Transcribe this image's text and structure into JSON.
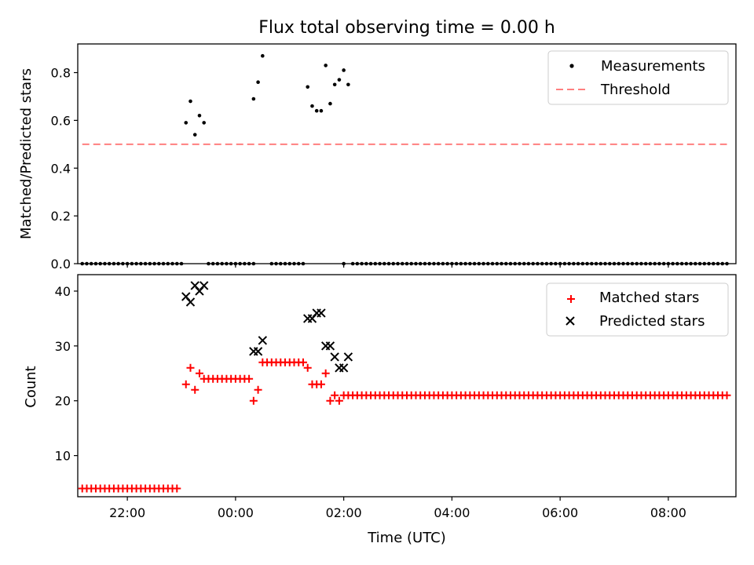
{
  "chart_data": [
    {
      "type": "scatter",
      "title": "Flux total observing time = 0.00 h",
      "xlabel": "",
      "ylabel": "Matched/Predicted stars",
      "xlim": [
        "21:05",
        "09:15"
      ],
      "ylim": [
        0,
        0.92
      ],
      "yticks": [
        0.0,
        0.2,
        0.4,
        0.6,
        0.8
      ],
      "ytick_labels": [
        "0.0",
        "0.2",
        "0.4",
        "0.6",
        "0.8"
      ],
      "grid": false,
      "legend": "top-right",
      "series": [
        {
          "name": "Measurements",
          "kind": "points",
          "color": "#000000",
          "zero_x": [
            "21:10",
            "21:15",
            "21:20",
            "21:25",
            "21:30",
            "21:35",
            "21:40",
            "21:45",
            "21:50",
            "21:55",
            "22:00",
            "22:05",
            "22:10",
            "22:15",
            "22:20",
            "22:25",
            "22:30",
            "22:35",
            "22:40",
            "22:45",
            "22:50",
            "22:55",
            "23:00",
            "23:30",
            "23:35",
            "23:40",
            "23:45",
            "23:50",
            "23:55",
            "00:00",
            "00:05",
            "00:10",
            "00:15",
            "00:20",
            "00:40",
            "00:45",
            "00:50",
            "00:55",
            "01:00",
            "01:05",
            "01:10",
            "01:15",
            "02:00",
            "02:10",
            "02:15",
            "02:20",
            "02:25",
            "02:30",
            "02:35",
            "02:40",
            "02:45",
            "02:50",
            "02:55",
            "03:00",
            "03:05",
            "03:10",
            "03:15",
            "03:20",
            "03:25",
            "03:30",
            "03:35",
            "03:40",
            "03:45",
            "03:50",
            "03:55",
            "04:00",
            "04:05",
            "04:10",
            "04:15",
            "04:20",
            "04:25",
            "04:30",
            "04:35",
            "04:40",
            "04:45",
            "04:50",
            "04:55",
            "05:00",
            "05:05",
            "05:10",
            "05:15",
            "05:20",
            "05:25",
            "05:30",
            "05:35",
            "05:40",
            "05:45",
            "05:50",
            "05:55",
            "06:00",
            "06:05",
            "06:10",
            "06:15",
            "06:20",
            "06:25",
            "06:30",
            "06:35",
            "06:40",
            "06:45",
            "06:50",
            "06:55",
            "07:00",
            "07:05",
            "07:10",
            "07:15",
            "07:20",
            "07:25",
            "07:30",
            "07:35",
            "07:40",
            "07:45",
            "07:50",
            "07:55",
            "08:00",
            "08:05",
            "08:10",
            "08:15",
            "08:20",
            "08:25",
            "08:30",
            "08:35",
            "08:40",
            "08:45",
            "08:50",
            "08:55",
            "09:00",
            "09:05"
          ],
          "points": [
            {
              "x": "23:05",
              "y": 0.59
            },
            {
              "x": "23:10",
              "y": 0.68
            },
            {
              "x": "23:15",
              "y": 0.54
            },
            {
              "x": "23:20",
              "y": 0.62
            },
            {
              "x": "23:25",
              "y": 0.59
            },
            {
              "x": "00:20",
              "y": 0.69
            },
            {
              "x": "00:25",
              "y": 0.76
            },
            {
              "x": "00:30",
              "y": 0.87
            },
            {
              "x": "01:20",
              "y": 0.74
            },
            {
              "x": "01:25",
              "y": 0.66
            },
            {
              "x": "01:30",
              "y": 0.64
            },
            {
              "x": "01:35",
              "y": 0.64
            },
            {
              "x": "01:40",
              "y": 0.83
            },
            {
              "x": "01:45",
              "y": 0.67
            },
            {
              "x": "01:50",
              "y": 0.75
            },
            {
              "x": "01:55",
              "y": 0.77
            },
            {
              "x": "02:00",
              "y": 0.81
            },
            {
              "x": "02:05",
              "y": 0.75
            }
          ]
        },
        {
          "name": "Threshold",
          "kind": "dashed-line",
          "color": "#ff7f7f",
          "x": [
            "21:10",
            "09:05"
          ],
          "y": [
            0.5,
            0.5
          ]
        }
      ]
    },
    {
      "type": "scatter",
      "title": "",
      "xlabel": "Time (UTC)",
      "ylabel": "Count",
      "xlim": [
        "21:05",
        "09:15"
      ],
      "ylim": [
        2.5,
        43
      ],
      "yticks": [
        10,
        20,
        30,
        40
      ],
      "ytick_labels": [
        "10",
        "20",
        "30",
        "40"
      ],
      "xticks": [
        "22:00",
        "00:00",
        "02:00",
        "04:00",
        "06:00",
        "08:00"
      ],
      "xtick_labels": [
        "22:00",
        "00:00",
        "02:00",
        "04:00",
        "06:00",
        "08:00"
      ],
      "grid": false,
      "legend": "top-right",
      "series": [
        {
          "name": "Matched stars",
          "marker": "plus",
          "color": "#ff0000",
          "runs": [
            {
              "from": "21:10",
              "to": "22:55",
              "y": 4
            },
            {
              "from": "23:30",
              "to": "00:15",
              "y": 24
            },
            {
              "from": "00:30",
              "to": "01:15",
              "y": 27
            },
            {
              "from": "02:00",
              "to": "09:05",
              "y": 21
            }
          ],
          "points": [
            {
              "x": "23:05",
              "y": 23
            },
            {
              "x": "23:10",
              "y": 26
            },
            {
              "x": "23:15",
              "y": 22
            },
            {
              "x": "23:20",
              "y": 25
            },
            {
              "x": "23:25",
              "y": 24
            },
            {
              "x": "00:20",
              "y": 20
            },
            {
              "x": "00:25",
              "y": 22
            },
            {
              "x": "01:20",
              "y": 26
            },
            {
              "x": "01:25",
              "y": 23
            },
            {
              "x": "01:30",
              "y": 23
            },
            {
              "x": "01:35",
              "y": 23
            },
            {
              "x": "01:40",
              "y": 25
            },
            {
              "x": "01:45",
              "y": 20
            },
            {
              "x": "01:50",
              "y": 21
            },
            {
              "x": "01:55",
              "y": 20
            }
          ]
        },
        {
          "name": "Predicted stars",
          "marker": "x",
          "color": "#000000",
          "points": [
            {
              "x": "23:05",
              "y": 39
            },
            {
              "x": "23:10",
              "y": 38
            },
            {
              "x": "23:15",
              "y": 41
            },
            {
              "x": "23:20",
              "y": 40
            },
            {
              "x": "23:25",
              "y": 41
            },
            {
              "x": "00:20",
              "y": 29
            },
            {
              "x": "00:25",
              "y": 29
            },
            {
              "x": "00:30",
              "y": 31
            },
            {
              "x": "01:20",
              "y": 35
            },
            {
              "x": "01:25",
              "y": 35
            },
            {
              "x": "01:30",
              "y": 36
            },
            {
              "x": "01:35",
              "y": 36
            },
            {
              "x": "01:40",
              "y": 30
            },
            {
              "x": "01:45",
              "y": 30
            },
            {
              "x": "01:50",
              "y": 28
            },
            {
              "x": "01:55",
              "y": 26
            },
            {
              "x": "02:00",
              "y": 26
            },
            {
              "x": "02:05",
              "y": 28
            }
          ]
        }
      ]
    }
  ]
}
